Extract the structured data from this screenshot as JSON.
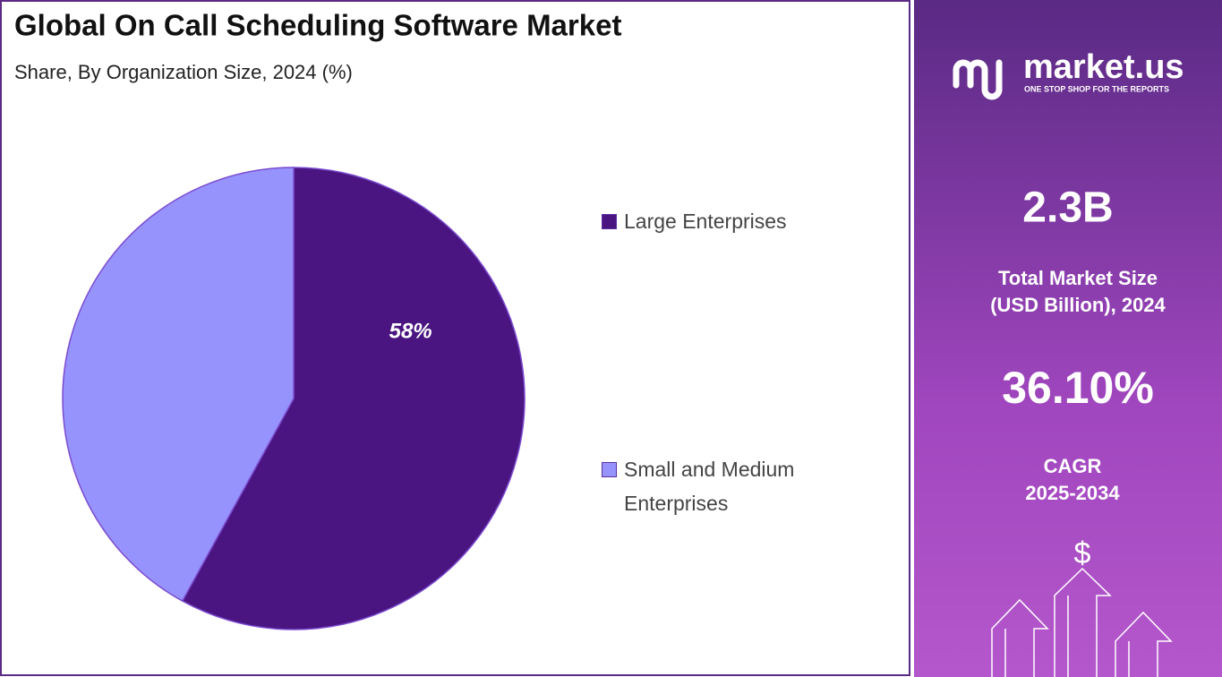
{
  "chart_data": {
    "type": "pie",
    "title": "Global On Call Scheduling Software Market",
    "subtitle": "Share, By Organization Size, 2024 (%)",
    "categories": [
      "Large Enterprises",
      "Small and Medium Enterprises"
    ],
    "values": [
      58,
      42
    ],
    "value_labels": [
      "58%",
      null
    ],
    "colors": [
      "#4a1580",
      "#9793fc"
    ],
    "legend": "right"
  },
  "panel": {
    "brand": "market.us",
    "tagline": "ONE STOP SHOP FOR THE REPORTS",
    "market_size": "2.3B",
    "market_size_label": [
      "Total Market Size",
      "(USD Billion), 2024"
    ],
    "cagr": "36.10%",
    "cagr_label": [
      "CAGR",
      "2025-2034"
    ],
    "icon": "$"
  }
}
